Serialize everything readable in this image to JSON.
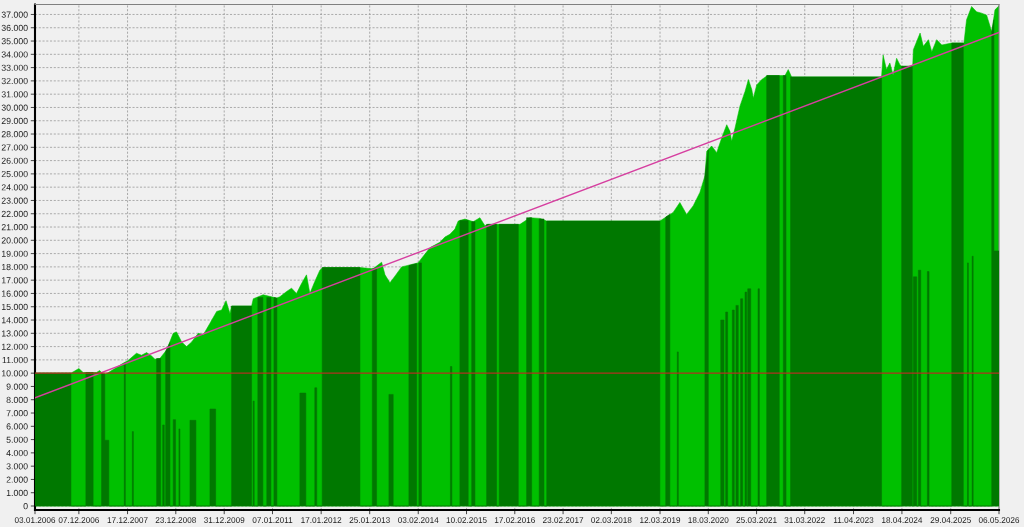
{
  "chart_data": {
    "type": "area",
    "xlim": [
      "2006-01-03",
      "2026-05-06"
    ],
    "ylim": [
      -300,
      37750
    ],
    "xticks": [
      {
        "value": "2006-01-03",
        "label": "03.01.2006"
      },
      {
        "value": "2006-12-07",
        "label": "07.12.2006"
      },
      {
        "value": "2007-12-17",
        "label": "17.12.2007"
      },
      {
        "value": "2008-12-23",
        "label": "23.12.2008"
      },
      {
        "value": "2009-12-31",
        "label": "31.12.2009"
      },
      {
        "value": "2011-01-07",
        "label": "07.01.2011"
      },
      {
        "value": "2012-01-17",
        "label": "17.01.2012"
      },
      {
        "value": "2013-01-25",
        "label": "25.01.2013"
      },
      {
        "value": "2014-02-03",
        "label": "03.02.2014"
      },
      {
        "value": "2015-02-10",
        "label": "10.02.2015"
      },
      {
        "value": "2016-02-17",
        "label": "17.02.2016"
      },
      {
        "value": "2017-02-23",
        "label": "23.02.2017"
      },
      {
        "value": "2018-03-02",
        "label": "02.03.2018"
      },
      {
        "value": "2019-03-12",
        "label": "12.03.2019"
      },
      {
        "value": "2020-03-18",
        "label": "18.03.2020"
      },
      {
        "value": "2021-03-25",
        "label": "25.03.2021"
      },
      {
        "value": "2022-03-31",
        "label": "31.03.2022"
      },
      {
        "value": "2023-04-11",
        "label": "11.04.2023"
      },
      {
        "value": "2024-04-18",
        "label": "18.04.2024"
      },
      {
        "value": "2025-04-29",
        "label": "29.04.2025"
      },
      {
        "value": "2026-05-06",
        "label": "06.05.2026"
      }
    ],
    "yticks": [
      0,
      {
        "value": 1000,
        "label": "1.000"
      },
      {
        "value": 2000,
        "label": "2.000"
      },
      {
        "value": 3000,
        "label": "3.000"
      },
      {
        "value": 4000,
        "label": "4.000"
      },
      {
        "value": 5000,
        "label": "5.000"
      },
      {
        "value": 6000,
        "label": "6.000"
      },
      {
        "value": 7000,
        "label": "7.000"
      },
      {
        "value": 8000,
        "label": "8.000"
      },
      {
        "value": 9000,
        "label": "9.000"
      },
      {
        "value": 10000,
        "label": "10.000"
      },
      {
        "value": 11000,
        "label": "11.000"
      },
      {
        "value": 12000,
        "label": "12.000"
      },
      {
        "value": 13000,
        "label": "13.000"
      },
      {
        "value": 14000,
        "label": "14.000"
      },
      {
        "value": 15000,
        "label": "15.000"
      },
      {
        "value": 16000,
        "label": "16.000"
      },
      {
        "value": 17000,
        "label": "17.000"
      },
      {
        "value": 18000,
        "label": "18.000"
      },
      {
        "value": 19000,
        "label": "19.000"
      },
      {
        "value": 20000,
        "label": "20.000"
      },
      {
        "value": 21000,
        "label": "21.000"
      },
      {
        "value": 22000,
        "label": "22.000"
      },
      {
        "value": 23000,
        "label": "23.000"
      },
      {
        "value": 24000,
        "label": "24.000"
      },
      {
        "value": 25000,
        "label": "25.000"
      },
      {
        "value": 26000,
        "label": "26.000"
      },
      {
        "value": 27000,
        "label": "27.000"
      },
      {
        "value": 28000,
        "label": "28.000"
      },
      {
        "value": 29000,
        "label": "29.000"
      },
      {
        "value": 30000,
        "label": "30.000"
      },
      {
        "value": 31000,
        "label": "31.000"
      },
      {
        "value": 32000,
        "label": "32.000"
      },
      {
        "value": 33000,
        "label": "33.000"
      },
      {
        "value": 34000,
        "label": "34.000"
      },
      {
        "value": 35000,
        "label": "35.000"
      },
      {
        "value": 36000,
        "label": "36.000"
      },
      {
        "value": 37000,
        "label": "37.000"
      }
    ],
    "grid": true,
    "series": [
      {
        "color": "#00c000",
        "x": [
          "2006-01-03",
          "2006-10-07",
          "2006-12-07",
          "2007-01-09",
          "2007-04-21",
          "2007-05-17",
          "2007-06-12",
          "2007-07-08",
          "2007-09-10",
          "2007-11-13",
          "2007-12-21",
          "2008-02-24",
          "2008-04-03",
          "2008-05-12",
          "2008-06-19",
          "2008-07-15",
          "2008-08-22",
          "2008-10-13",
          "2008-12-03",
          "2008-12-29",
          "2009-02-06",
          "2009-03-16",
          "2009-04-24",
          "2009-06-14",
          "2009-07-23",
          "2009-09-12",
          "2009-11-03",
          "2009-12-11",
          "2010-01-14",
          "2010-02-13",
          "2010-02-26",
          "2010-07-30",
          "2010-08-12",
          "2010-09-19",
          "2010-10-27",
          "2011-02-08",
          "2011-03-05",
          "2011-04-26",
          "2011-06-03",
          "2011-07-11",
          "2011-08-19",
          "2011-09-26",
          "2011-10-22",
          "2011-11-29",
          "2012-01-07",
          "2012-02-01",
          "2012-11-11",
          "2013-02-19",
          "2013-04-27",
          "2013-05-23",
          "2013-06-30",
          "2013-08-07",
          "2013-09-28",
          "2014-02-01",
          "2014-05-05",
          "2014-07-20",
          "2014-08-28",
          "2014-10-05",
          "2014-11-13",
          "2014-12-08",
          "2015-01-29",
          "2015-04-03",
          "2015-05-24",
          "2015-07-02",
          "2015-07-25",
          "2016-03-28",
          "2016-06-13",
          "2016-08-29",
          "2016-10-20",
          "2019-03-11",
          "2019-06-21",
          "2019-08-12",
          "2019-10-03",
          "2019-11-23",
          "2020-01-13",
          "2020-02-21",
          "2020-03-06",
          "2020-04-13",
          "2020-05-22",
          "2020-06-29",
          "2020-08-07",
          "2020-09-01",
          "2020-09-14",
          "2020-10-10",
          "2020-11-17",
          "2020-12-26",
          "2021-01-21",
          "2021-02-16",
          "2021-02-28",
          "2021-03-26",
          "2021-05-04",
          "2021-06-16",
          "2021-10-30",
          "2021-11-24",
          "2021-12-20",
          "2023-11-13",
          "2023-11-25",
          "2023-12-21",
          "2024-01-16",
          "2024-02-10",
          "2024-03-08",
          "2024-04-03",
          "2024-04-16",
          "2024-07-10",
          "2024-07-15",
          "2024-09-05",
          "2024-09-30",
          "2024-11-08",
          "2024-12-04",
          "2025-01-11",
          "2025-02-19",
          "2025-05-07",
          "2025-08-09",
          "2025-08-29",
          "2025-10-07",
          "2025-11-14",
          "2025-12-23",
          "2026-01-31",
          "2026-03-11",
          "2026-04-05",
          "2026-05-06"
        ],
        "values": [
          10000,
          10000,
          10350,
          10050,
          10050,
          10200,
          9900,
          9950,
          10350,
          10750,
          10950,
          11500,
          11350,
          11550,
          11300,
          11050,
          11100,
          11750,
          13000,
          13100,
          12350,
          12000,
          12350,
          13000,
          12900,
          13750,
          14650,
          14750,
          15450,
          14500,
          15050,
          15050,
          15600,
          15750,
          15900,
          15650,
          15750,
          16150,
          16400,
          16000,
          16750,
          17400,
          16000,
          16900,
          17750,
          17950,
          17950,
          17850,
          18350,
          17400,
          16800,
          17300,
          18000,
          18300,
          19450,
          19850,
          20250,
          20450,
          20850,
          21450,
          21600,
          21400,
          21700,
          21100,
          21200,
          21200,
          21700,
          21650,
          21450,
          21450,
          22100,
          22850,
          21950,
          22600,
          23600,
          24850,
          26700,
          27100,
          26600,
          27700,
          28700,
          28200,
          27450,
          28450,
          30100,
          31200,
          32100,
          31350,
          30700,
          31700,
          32100,
          32400,
          32400,
          32850,
          32300,
          32300,
          33950,
          32850,
          33350,
          32450,
          33700,
          33200,
          33100,
          33100,
          34350,
          35600,
          34600,
          35100,
          34200,
          35100,
          34700,
          34850,
          34850,
          36600,
          37600,
          37200,
          37100,
          36950,
          35700,
          37350,
          37650
        ]
      },
      {
        "color": "#007800",
        "x": [
          "2006-01-03",
          "2006-01-03",
          "2006-10-07",
          "2006-10-07",
          "2007-01-30",
          "2007-01-30",
          "2007-03-27",
          "2007-03-27",
          "2007-05-31",
          "2007-05-31",
          "2007-06-25",
          "2007-06-25",
          "2007-07-26",
          "2007-07-26",
          "2007-11-22",
          "2007-11-22",
          "2007-11-30",
          "2007-11-30",
          "2008-01-23",
          "2008-01-23",
          "2008-01-31",
          "2008-01-31",
          "2008-07-28",
          "2008-07-28",
          "2008-08-28",
          "2008-08-28",
          "2008-09-13",
          "2008-09-13",
          "2008-09-25",
          "2008-09-25",
          "2008-10-06",
          "2008-10-06",
          "2008-11-08",
          "2008-11-08",
          "2008-12-03",
          "2008-12-03",
          "2008-12-21",
          "2008-12-21",
          "2009-01-16",
          "2009-01-16",
          "2009-01-24",
          "2009-01-24",
          "2009-04-11",
          "2009-04-11",
          "2009-05-27",
          "2009-05-27",
          "2009-09-12",
          "2009-09-12",
          "2009-10-26",
          "2009-10-26",
          "2010-02-26",
          "2010-02-26",
          "2010-07-30",
          "2010-07-30",
          "2010-08-11",
          "2010-08-11",
          "2010-08-19",
          "2010-08-19",
          "2010-09-16",
          "2010-09-16",
          "2010-10-25",
          "2010-10-25",
          "2010-11-24",
          "2010-11-24",
          "2010-12-26",
          "2010-12-26",
          "2011-01-18",
          "2011-01-18",
          "2011-02-10",
          "2011-02-10",
          "2011-08-06",
          "2011-08-06",
          "2011-09-21",
          "2011-09-21",
          "2011-11-29",
          "2011-11-29",
          "2011-12-14",
          "2011-12-14",
          "2012-01-25",
          "2012-01-25",
          "2012-11-11",
          "2012-11-11",
          "2013-02-14",
          "2013-02-14",
          "2013-03-19",
          "2013-03-19",
          "2013-06-22",
          "2013-06-22",
          "2013-07-25",
          "2013-07-25",
          "2013-11-23",
          "2013-11-23",
          "2014-01-22",
          "2014-01-22",
          "2014-02-08",
          "2014-02-08",
          "2014-02-28",
          "2014-02-28",
          "2014-10-09",
          "2014-10-09",
          "2014-10-20",
          "2014-10-20",
          "2014-12-21",
          "2014-12-21",
          "2015-02-23",
          "2015-02-23",
          "2015-03-22",
          "2015-03-22",
          "2015-04-16",
          "2015-04-16",
          "2015-07-15",
          "2015-07-15",
          "2015-09-30",
          "2015-09-30",
          "2015-10-20",
          "2015-10-20",
          "2016-03-15",
          "2016-03-15",
          "2016-05-18",
          "2016-05-18",
          "2016-06-26",
          "2016-06-26",
          "2016-08-23",
          "2016-08-23",
          "2016-09-29",
          "2016-09-29",
          "2016-10-20",
          "2016-10-20",
          "2019-03-11",
          "2019-03-11",
          "2019-04-25",
          "2019-04-25",
          "2019-05-27",
          "2019-05-27",
          "2019-07-23",
          "2019-07-23",
          "2019-07-31",
          "2019-07-31",
          "2020-02-21",
          "2020-02-21",
          "2020-03-18",
          "2020-03-18",
          "2020-06-22",
          "2020-06-22",
          "2020-07-17",
          "2020-07-17",
          "2020-07-30",
          "2020-07-30",
          "2020-08-14",
          "2020-08-14",
          "2020-09-19",
          "2020-09-19",
          "2020-10-04",
          "2020-10-04",
          "2020-10-17",
          "2020-10-17",
          "2020-11-04",
          "2020-11-04",
          "2020-11-22",
          "2020-11-22",
          "2020-12-08",
          "2020-12-08",
          "2020-12-26",
          "2020-12-26",
          "2021-01-08",
          "2021-01-08",
          "2021-01-16",
          "2021-01-16",
          "2021-02-08",
          "2021-02-08",
          "2021-04-05",
          "2021-04-05",
          "2021-04-16",
          "2021-04-16",
          "2021-06-11",
          "2021-06-11",
          "2021-09-16",
          "2021-09-16",
          "2021-10-17",
          "2021-10-17",
          "2021-11-07",
          "2021-11-07",
          "2021-12-12",
          "2021-12-12",
          "2023-11-13",
          "2023-11-13",
          "2024-04-16",
          "2024-04-16",
          "2024-07-07",
          "2024-07-07",
          "2024-07-15",
          "2024-07-15",
          "2024-08-10",
          "2024-08-10",
          "2024-08-23",
          "2024-08-23",
          "2024-09-10",
          "2024-09-10",
          "2024-10-31",
          "2024-10-31",
          "2024-11-13",
          "2024-11-13",
          "2025-05-07",
          "2025-05-07",
          "2025-08-04",
          "2025-08-04",
          "2025-09-05",
          "2025-09-05",
          "2025-09-12",
          "2025-09-12",
          "2025-10-11",
          "2025-10-11",
          "2025-10-19",
          "2025-10-19",
          "2026-03-11",
          "2026-03-11",
          "2026-03-28",
          "2026-03-28",
          "2026-05-06",
          "2026-05-06"
        ],
        "values": [
          0,
          10000,
          10000,
          0,
          0,
          10050,
          10050,
          0,
          0,
          9950,
          9950,
          4950,
          4950,
          0,
          0,
          10750,
          10750,
          0,
          0,
          5600,
          5600,
          0,
          0,
          11100,
          11100,
          0,
          0,
          6100,
          6100,
          0,
          0,
          11650,
          12300,
          0,
          0,
          6500,
          6500,
          0,
          0,
          5800,
          5800,
          0,
          0,
          6450,
          6450,
          0,
          0,
          7300,
          7300,
          0,
          0,
          15050,
          15050,
          0,
          0,
          7900,
          7900,
          0,
          0,
          15700,
          15700,
          0,
          0,
          15700,
          15700,
          0,
          0,
          15700,
          15650,
          0,
          0,
          8500,
          8500,
          0,
          0,
          8900,
          8900,
          0,
          0,
          17950,
          17950,
          0,
          0,
          17850,
          17850,
          0,
          0,
          8400,
          8400,
          0,
          0,
          18100,
          18250,
          0,
          0,
          18300,
          18300,
          0,
          0,
          10500,
          10500,
          0,
          0,
          21500,
          21500,
          0,
          0,
          21400,
          21400,
          0,
          0,
          21200,
          21200,
          0,
          0,
          21200,
          21200,
          0,
          0,
          21700,
          21700,
          0,
          0,
          21600,
          21600,
          0,
          0,
          21450,
          21450,
          0,
          0,
          21750,
          21950,
          0,
          0,
          11600,
          11600,
          0,
          0,
          24850,
          26800,
          0,
          0,
          14000,
          14000,
          0,
          0,
          14600,
          14600,
          0,
          0,
          14750,
          14750,
          0,
          0,
          15100,
          15100,
          0,
          0,
          15600,
          15600,
          0,
          0,
          16100,
          16100,
          0,
          0,
          16350,
          16350,
          0,
          0,
          16350,
          16350,
          0,
          0,
          32400,
          32400,
          0,
          0,
          32400,
          32400,
          0,
          0,
          32300,
          32300,
          0,
          0,
          33100,
          33100,
          0,
          0,
          17250,
          17250,
          0,
          0,
          17750,
          17750,
          0,
          0,
          17650,
          17650,
          0,
          0,
          34850,
          34850,
          0,
          0,
          18300,
          18300,
          0,
          0,
          18800,
          18800,
          0,
          0,
          35700,
          36600,
          19200,
          19200,
          0
        ]
      },
      {
        "type": "line",
        "color": "#d63fa0",
        "x": [
          "2006-01-03",
          "2026-05-06"
        ],
        "values": [
          8150,
          35650
        ]
      }
    ],
    "ref_lines": [
      {
        "axis": "y",
        "value": 10000,
        "color": "#b03020"
      }
    ]
  }
}
